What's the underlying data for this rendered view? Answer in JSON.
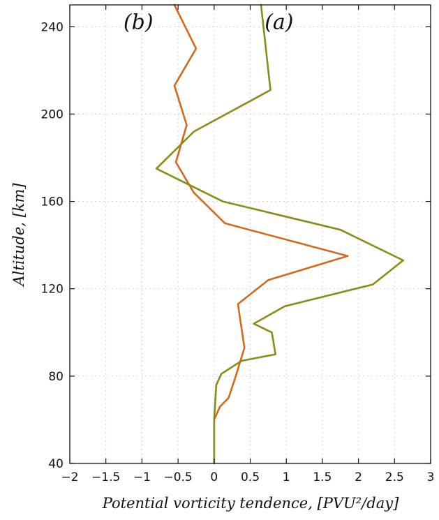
{
  "chart_data": {
    "type": "line",
    "xlabel": "Potential vorticity tendence, [PVU²/day]",
    "ylabel": "Altitude, [km]",
    "xlim": [
      -2,
      3
    ],
    "ylim": [
      40,
      250
    ],
    "x_ticks": [
      -2,
      -1.5,
      -1,
      -0.5,
      0,
      0.5,
      1,
      1.5,
      2,
      2.5,
      3
    ],
    "x_tick_labels": [
      "−2",
      "−1.5",
      "−1",
      "−0.5",
      "0",
      "0.5",
      "1",
      "1.5",
      "2",
      "2.5",
      "3"
    ],
    "y_ticks": [
      40,
      80,
      120,
      160,
      200,
      240
    ],
    "y_tick_labels": [
      "40",
      "80",
      "120",
      "160",
      "200",
      "240"
    ],
    "grid": true,
    "annotations": [
      {
        "text": "(b)",
        "x": -1.05,
        "y": 239
      },
      {
        "text": "(a)",
        "x": 0.9,
        "y": 239
      }
    ],
    "series": [
      {
        "color": "#d2691e",
        "label": "(b)",
        "x": [
          -0.55,
          -0.25,
          -0.55,
          -0.38,
          -0.53,
          -0.28,
          0.15,
          1.85,
          0.75,
          0.33,
          0.42,
          0.3,
          0.2,
          0.08,
          0.0,
          0.0
        ],
        "y": [
          250,
          230,
          213,
          195,
          178,
          164,
          150,
          135,
          124,
          113,
          93,
          80,
          70,
          66,
          60,
          40
        ]
      },
      {
        "color": "#8b8b1a",
        "label": "(a)",
        "x": [
          0.65,
          0.78,
          -0.28,
          -0.8,
          0.12,
          1.75,
          2.62,
          2.2,
          0.98,
          0.55,
          0.8,
          0.85,
          0.38,
          0.1,
          0.03,
          0.0,
          0.0
        ],
        "y": [
          250,
          211,
          192,
          175,
          160,
          147,
          133,
          122,
          112,
          104,
          100,
          90,
          87,
          81,
          76,
          60,
          40
        ]
      }
    ]
  }
}
